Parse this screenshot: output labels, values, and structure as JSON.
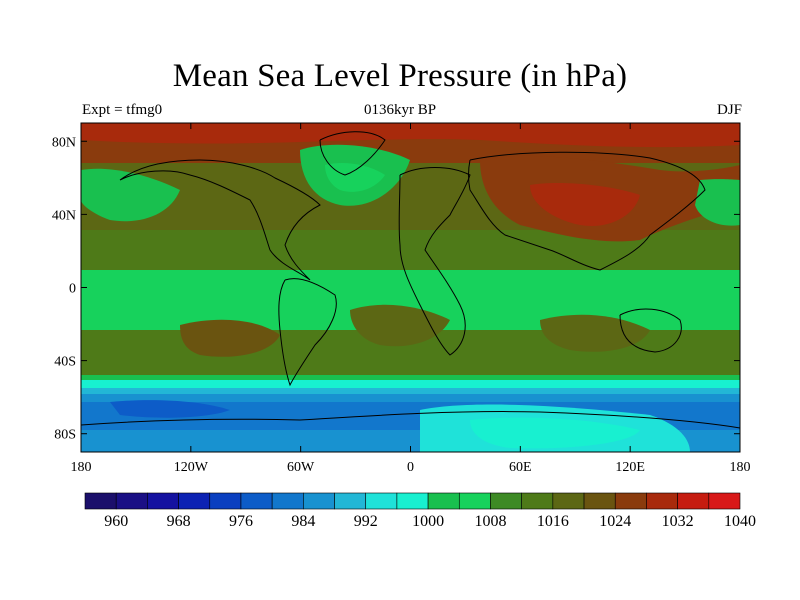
{
  "map": {
    "title": "Mean Sea Level Pressure (in hPa)",
    "subtitle": "0136kyr BP",
    "left_label": "Expt = tfmg0",
    "right_label": "DJF",
    "lat_ticks": [
      "80N",
      "40N",
      "0",
      "40S",
      "80S"
    ],
    "lat_values": [
      80,
      40,
      0,
      -40,
      -80
    ],
    "lon_ticks": [
      "180",
      "120W",
      "60W",
      "0",
      "60E",
      "120E",
      "180"
    ],
    "lon_values": [
      -180,
      -120,
      -60,
      0,
      60,
      120,
      180
    ],
    "colors": {
      "c960": "#1b0f6b",
      "c964": "#1a0f85",
      "c968": "#1412a0",
      "c972": "#0c22b3",
      "c976": "#0a3fc0",
      "c980": "#0d5cc8",
      "c984": "#1277cc",
      "c988": "#1892d0",
      "c992": "#22b7d6",
      "c996": "#1fe2d9",
      "c1000": "#18f0d0",
      "c1004": "#19c04f",
      "c1008": "#17d25c",
      "c1012": "#3d8a25",
      "c1016": "#4e7a18",
      "c1020": "#5c6714",
      "c1024": "#6a5410",
      "c1028": "#8a3b0d",
      "c1032": "#a82a0c",
      "c1036": "#c61c10",
      "c1040": "#d81818"
    }
  },
  "colorbar": {
    "labels": [
      "960",
      "968",
      "976",
      "984",
      "992",
      "1000",
      "1008",
      "1016",
      "1024",
      "1032",
      "1040"
    ],
    "colors": [
      "#1b0f6b",
      "#1a0f85",
      "#1412a0",
      "#0c22b3",
      "#0a3fc0",
      "#0d5cc8",
      "#1277cc",
      "#1892d0",
      "#22b7d6",
      "#1fe2d9",
      "#18f0d0",
      "#19c04f",
      "#17d25c",
      "#3d8a25",
      "#4e7a18",
      "#5c6714",
      "#6a5410",
      "#8a3b0d",
      "#a82a0c",
      "#c61c10",
      "#d81818"
    ]
  }
}
